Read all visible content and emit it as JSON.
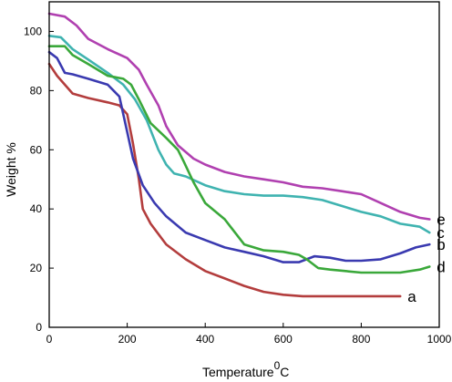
{
  "chart_data": {
    "type": "line",
    "title": "",
    "xlabel": "Temperature",
    "xlabel_superscript": "0",
    "xlabel_suffix": "C",
    "ylabel": "Weight %",
    "xlim": [
      0,
      1000
    ],
    "ylim": [
      0,
      110
    ],
    "xticks": [
      0,
      200,
      400,
      600,
      800,
      1000
    ],
    "yticks": [
      0,
      20,
      40,
      60,
      80,
      100
    ],
    "grid": false,
    "legend": "series labels at right end of each curve",
    "series": [
      {
        "name": "a",
        "color": "#b33d3d",
        "points": [
          [
            0,
            89
          ],
          [
            20,
            85
          ],
          [
            60,
            79
          ],
          [
            100,
            77.5
          ],
          [
            150,
            76
          ],
          [
            180,
            75
          ],
          [
            200,
            72
          ],
          [
            215,
            62
          ],
          [
            230,
            50
          ],
          [
            240,
            40
          ],
          [
            260,
            35
          ],
          [
            300,
            28
          ],
          [
            350,
            23
          ],
          [
            400,
            19
          ],
          [
            450,
            16.5
          ],
          [
            500,
            14
          ],
          [
            550,
            12
          ],
          [
            600,
            11
          ],
          [
            650,
            10.5
          ],
          [
            700,
            10.5
          ],
          [
            800,
            10.5
          ],
          [
            900,
            10.5
          ]
        ]
      },
      {
        "name": "b",
        "color": "#3a3ab0",
        "points": [
          [
            0,
            93
          ],
          [
            20,
            91
          ],
          [
            40,
            86
          ],
          [
            60,
            85.5
          ],
          [
            100,
            84
          ],
          [
            150,
            82
          ],
          [
            180,
            78
          ],
          [
            200,
            66
          ],
          [
            215,
            57
          ],
          [
            240,
            48
          ],
          [
            270,
            42
          ],
          [
            300,
            37.5
          ],
          [
            350,
            32
          ],
          [
            400,
            29.5
          ],
          [
            450,
            27
          ],
          [
            500,
            25.5
          ],
          [
            550,
            24
          ],
          [
            600,
            22
          ],
          [
            640,
            22
          ],
          [
            680,
            24
          ],
          [
            720,
            23.5
          ],
          [
            760,
            22.5
          ],
          [
            800,
            22.5
          ],
          [
            850,
            23
          ],
          [
            900,
            25
          ],
          [
            940,
            27
          ],
          [
            975,
            28
          ]
        ]
      },
      {
        "name": "c",
        "color": "#3fb3b0",
        "points": [
          [
            0,
            98.5
          ],
          [
            30,
            98
          ],
          [
            60,
            94
          ],
          [
            100,
            90.5
          ],
          [
            150,
            86
          ],
          [
            190,
            82
          ],
          [
            220,
            77
          ],
          [
            250,
            70
          ],
          [
            280,
            60
          ],
          [
            300,
            55
          ],
          [
            320,
            52
          ],
          [
            350,
            51
          ],
          [
            400,
            48
          ],
          [
            450,
            46
          ],
          [
            500,
            45
          ],
          [
            550,
            44.5
          ],
          [
            600,
            44.5
          ],
          [
            650,
            44
          ],
          [
            700,
            43
          ],
          [
            750,
            41
          ],
          [
            800,
            39
          ],
          [
            850,
            37.5
          ],
          [
            900,
            35
          ],
          [
            950,
            34
          ],
          [
            975,
            32
          ]
        ]
      },
      {
        "name": "d",
        "color": "#3aa83a",
        "points": [
          [
            0,
            95
          ],
          [
            40,
            95
          ],
          [
            60,
            92
          ],
          [
            100,
            89
          ],
          [
            150,
            85
          ],
          [
            190,
            84
          ],
          [
            210,
            82
          ],
          [
            230,
            77
          ],
          [
            260,
            69
          ],
          [
            300,
            64
          ],
          [
            330,
            60
          ],
          [
            345,
            56
          ],
          [
            370,
            49
          ],
          [
            400,
            42
          ],
          [
            450,
            36.5
          ],
          [
            500,
            28
          ],
          [
            550,
            26
          ],
          [
            600,
            25.5
          ],
          [
            640,
            24.5
          ],
          [
            660,
            23
          ],
          [
            690,
            20
          ],
          [
            720,
            19.5
          ],
          [
            800,
            18.5
          ],
          [
            900,
            18.5
          ],
          [
            950,
            19.5
          ],
          [
            975,
            20.5
          ]
        ]
      },
      {
        "name": "e",
        "color": "#b040b0",
        "points": [
          [
            0,
            106
          ],
          [
            40,
            105
          ],
          [
            70,
            102
          ],
          [
            100,
            97.5
          ],
          [
            150,
            94
          ],
          [
            200,
            91
          ],
          [
            230,
            87
          ],
          [
            250,
            82
          ],
          [
            280,
            75
          ],
          [
            300,
            68
          ],
          [
            330,
            61.5
          ],
          [
            370,
            57
          ],
          [
            400,
            55
          ],
          [
            450,
            52.5
          ],
          [
            500,
            51
          ],
          [
            550,
            50
          ],
          [
            600,
            49
          ],
          [
            650,
            47.5
          ],
          [
            700,
            47
          ],
          [
            750,
            46
          ],
          [
            800,
            45
          ],
          [
            850,
            42
          ],
          [
            900,
            39
          ],
          [
            950,
            37
          ],
          [
            975,
            36.5
          ]
        ]
      }
    ]
  }
}
